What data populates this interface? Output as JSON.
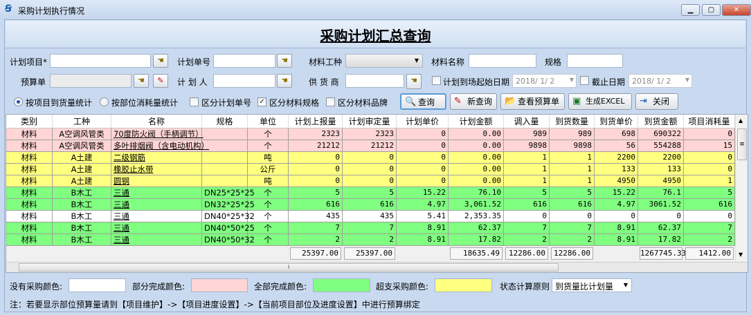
{
  "window": {
    "title": "采购计划执行情况",
    "minimize": "▁",
    "maximize": "▢",
    "close": "✕"
  },
  "page_title": "采购计划汇总查询",
  "filters": {
    "plan_project_label": "计划项目*",
    "plan_no_label": "计划单号",
    "material_type_label": "材料工种",
    "material_name_label": "材料名称",
    "spec_label": "规格",
    "budget_label": "预算单",
    "planner_label": "计 划 人",
    "supplier_label": "供 货 商",
    "start_date_label": "计划到场起始日期",
    "start_date_value": "2018/ 1/ 2",
    "end_date_label": "截止日期",
    "end_date_value": "2018/ 1/ 2"
  },
  "options": {
    "radio_by_arrival": "按项目到货量统计",
    "radio_by_consumption": "按部位消耗量统计",
    "chk_plan_no": "区分计划单号",
    "chk_spec": "区分材料规格",
    "chk_brand": "区分材料品牌"
  },
  "state": {
    "radio_selected": "by_arrival",
    "chk_plan_no": false,
    "chk_spec": true,
    "chk_brand": false,
    "start_date_checked": false,
    "end_date_checked": false
  },
  "buttons": {
    "query": "查询",
    "new_query": "新查询",
    "view_budget": "查看预算单",
    "export_excel": "生成EXCEL",
    "close": "关闭"
  },
  "table": {
    "columns": [
      "类别",
      "工种",
      "名称",
      "规格",
      "单位",
      "计划上报量",
      "计划审定量",
      "计划单价",
      "计划金额",
      "调入量",
      "到货数量",
      "到货单价",
      "到货金额",
      "项目消耗量"
    ],
    "rows": [
      {
        "status": "partial",
        "cells": [
          "材料",
          "A空调风管类",
          "70度防火阀（手柄调节）",
          "",
          "个",
          "2323",
          "2323",
          "0",
          "0.00",
          "989",
          "989",
          "698",
          "690322",
          "0"
        ]
      },
      {
        "status": "partial",
        "cells": [
          "材料",
          "A空调风管类",
          "多叶排烟阀（含电动机构）",
          "",
          "个",
          "21212",
          "21212",
          "0",
          "0.00",
          "9898",
          "9898",
          "56",
          "554288",
          "15"
        ]
      },
      {
        "status": "over",
        "cells": [
          "材料",
          "A土建",
          "二级钢筋",
          "",
          "吨",
          "0",
          "0",
          "0",
          "0.00",
          "1",
          "1",
          "2200",
          "2200",
          "0"
        ]
      },
      {
        "status": "over",
        "cells": [
          "材料",
          "A土建",
          "橡胶止水带",
          "",
          "公斤",
          "0",
          "0",
          "0",
          "0.00",
          "1",
          "1",
          "133",
          "133",
          "0"
        ]
      },
      {
        "status": "over",
        "cells": [
          "材料",
          "A土建",
          "圆钢",
          "",
          "吨",
          "0",
          "0",
          "0",
          "0.00",
          "1",
          "1",
          "4950",
          "4950",
          "1"
        ]
      },
      {
        "status": "complete",
        "cells": [
          "材料",
          "B木工",
          "三通",
          "DN25*25*25",
          "个",
          "5",
          "5",
          "15.22",
          "76.10",
          "5",
          "5",
          "15.22",
          "76.1",
          "5"
        ]
      },
      {
        "status": "complete",
        "cells": [
          "材料",
          "B木工",
          "三通",
          "DN32*25*25",
          "个",
          "616",
          "616",
          "4.97",
          "3,061.52",
          "616",
          "616",
          "4.97",
          "3061.52",
          "616"
        ]
      },
      {
        "status": "none",
        "cells": [
          "材料",
          "B木工",
          "三通",
          "DN40*25*32",
          "个",
          "435",
          "435",
          "5.41",
          "2,353.35",
          "0",
          "0",
          "0",
          "0",
          "0"
        ]
      },
      {
        "status": "complete",
        "cells": [
          "材料",
          "B木工",
          "三通",
          "DN40*50*25",
          "个",
          "7",
          "7",
          "8.91",
          "62.37",
          "7",
          "7",
          "8.91",
          "62.37",
          "7"
        ]
      },
      {
        "status": "complete",
        "cells": [
          "材料",
          "B木工",
          "三通",
          "DN40*50*32",
          "个",
          "2",
          "2",
          "8.91",
          "17.82",
          "2",
          "2",
          "8.91",
          "17.82",
          "2"
        ]
      }
    ],
    "totals": {
      "5": "25397.00",
      "6": "25397.00",
      "8": "18635.49",
      "9": "12286.00",
      "10": "12286.00",
      "12": "1267745.33",
      "13": "1412.00"
    }
  },
  "legend": {
    "none_label": "没有采购颜色:",
    "partial_label": "部分完成颜色:",
    "complete_label": "全部完成颜色:",
    "over_label": "超支采购颜色:",
    "rule_label": "状态计算原则",
    "rule_value": "到货量比计划量"
  },
  "colors": {
    "none": "#ffffff",
    "partial": "#ffd5d5",
    "complete": "#80ff80",
    "over": "#ffff80"
  },
  "note": "注：若要显示部位预算量请到【项目维护】->【项目进度设置】->【当前项目部位及进度设置】中进行预算绑定"
}
